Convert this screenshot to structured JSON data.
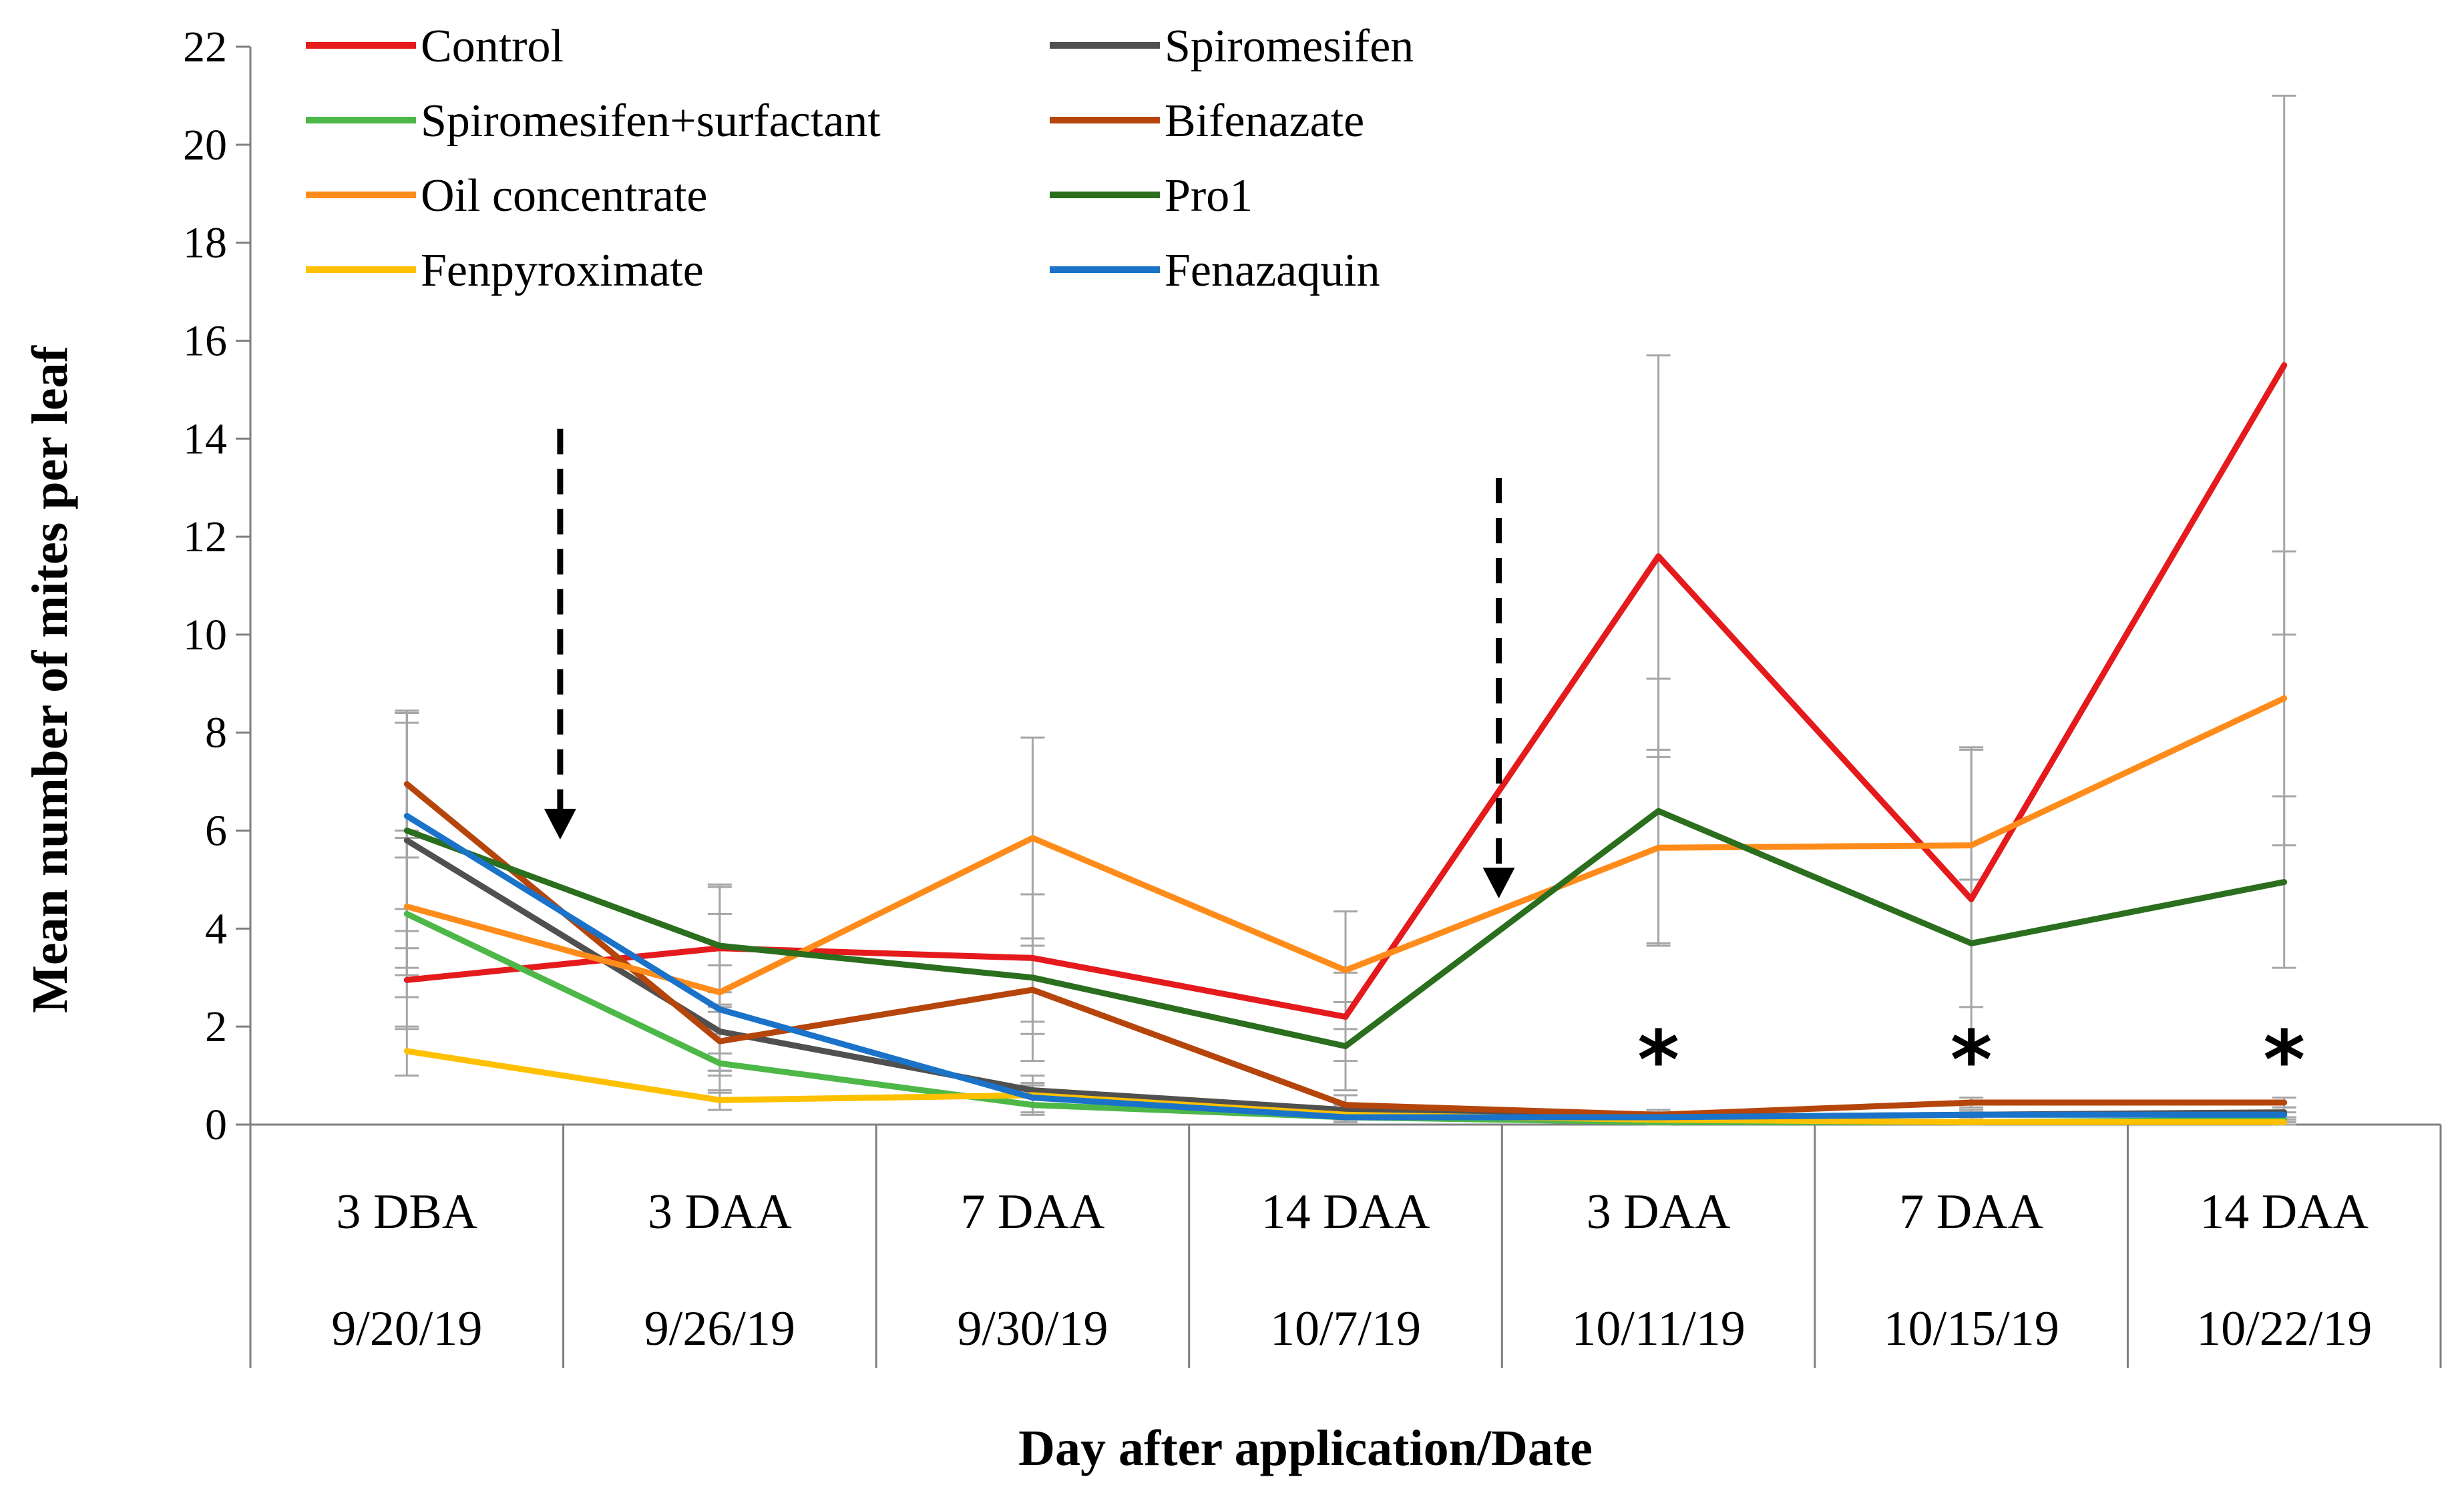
{
  "chart_data": {
    "type": "line",
    "title": "",
    "xlabel": "Day after application/Date",
    "ylabel": "Mean number of mites per leaf",
    "ylim": [
      0,
      22
    ],
    "yticks": [
      0,
      2,
      4,
      6,
      8,
      10,
      12,
      14,
      16,
      18,
      20,
      22
    ],
    "categories": [
      {
        "day": "3 DBA",
        "date": "9/20/19"
      },
      {
        "day": "3 DAA",
        "date": "9/26/19"
      },
      {
        "day": "7 DAA",
        "date": "9/30/19"
      },
      {
        "day": "14 DAA",
        "date": "10/7/19"
      },
      {
        "day": "3 DAA",
        "date": "10/11/19"
      },
      {
        "day": "7 DAA",
        "date": "10/15/19"
      },
      {
        "day": "14 DAA",
        "date": "10/22/19"
      }
    ],
    "series": [
      {
        "name": "Control",
        "color": "#e41a1c",
        "values": [
          2.95,
          3.6,
          3.4,
          2.2,
          11.6,
          4.6,
          15.5
        ],
        "errors": [
          1.0,
          1.3,
          1.3,
          0.9,
          4.1,
          3.1,
          5.5
        ]
      },
      {
        "name": "Spiromesifen",
        "color": "#505050",
        "values": [
          5.8,
          1.9,
          0.7,
          0.3,
          0.15,
          0.2,
          0.25
        ],
        "errors": [
          2.6,
          0.8,
          0.3,
          0.1,
          0.1,
          0.1,
          0.1
        ]
      },
      {
        "name": "Spiromesifen+surfactant",
        "color": "#4db848",
        "values": [
          4.3,
          1.25,
          0.4,
          0.15,
          0.05,
          0.05,
          0.1
        ],
        "errors": [
          1.7,
          0.6,
          0.2,
          0.1,
          0.05,
          0.05,
          0.05
        ]
      },
      {
        "name": "Bifenazate",
        "color": "#b5450b",
        "values": [
          6.95,
          1.7,
          2.75,
          0.4,
          0.2,
          0.45,
          0.45
        ],
        "errors": [
          1.5,
          0.7,
          0.9,
          0.2,
          0.1,
          0.1,
          0.1
        ]
      },
      {
        "name": "Oil concentrate",
        "color": "#ff8c1a",
        "values": [
          4.45,
          2.7,
          5.85,
          3.15,
          5.65,
          5.7,
          8.7
        ],
        "errors": [
          1.4,
          1.6,
          2.05,
          1.2,
          2.0,
          1.95,
          3.0
        ]
      },
      {
        "name": "Pro1",
        "color": "#2a6e1e",
        "values": [
          6.0,
          3.65,
          3.0,
          1.6,
          6.4,
          3.7,
          4.95
        ],
        "errors": [
          2.4,
          1.2,
          1.7,
          0.9,
          2.7,
          1.3,
          1.75
        ]
      },
      {
        "name": "Fenpyroximate",
        "color": "#ffc000",
        "values": [
          1.5,
          0.5,
          0.6,
          0.2,
          0.1,
          0.05,
          0.05
        ],
        "errors": [
          0.5,
          0.2,
          0.2,
          0.1,
          0.05,
          0.05,
          0.05
        ]
      },
      {
        "name": "Fenazaquin",
        "color": "#1a73c8",
        "values": [
          6.3,
          2.35,
          0.55,
          0.15,
          0.15,
          0.2,
          0.2
        ],
        "errors": [
          1.9,
          0.9,
          0.3,
          0.1,
          0.05,
          0.05,
          0.05
        ]
      }
    ],
    "application_arrows": [
      {
        "x_between": [
          0,
          1
        ],
        "top": 14.2,
        "bottom": 6.2
      },
      {
        "x_between": [
          3,
          4
        ],
        "top": 13.2,
        "bottom": 5.0
      }
    ],
    "significance_markers": [
      {
        "category_index": 4,
        "label": "*"
      },
      {
        "category_index": 5,
        "label": "*"
      },
      {
        "category_index": 6,
        "label": "*"
      }
    ],
    "legend": {
      "placement": "top-left",
      "columns": 2
    },
    "grid": false
  }
}
